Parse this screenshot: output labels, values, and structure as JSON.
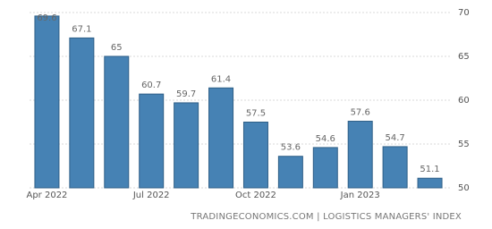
{
  "chart_data": {
    "type": "bar",
    "categories": [
      "Apr 2022",
      null,
      null,
      "Jul 2022",
      null,
      null,
      "Oct 2022",
      null,
      null,
      "Jan 2023",
      null,
      null
    ],
    "values": [
      69.6,
      67.1,
      65,
      60.7,
      59.7,
      61.4,
      57.5,
      53.6,
      54.6,
      57.6,
      54.7,
      51.1
    ],
    "color": "#4682b4",
    "ylim": [
      50,
      70
    ],
    "yticks": [
      50,
      55,
      60,
      65,
      70
    ],
    "grid": true,
    "source": "TRADINGECONOMICS.COM | LOGISTICS MANAGERS' INDEX"
  }
}
